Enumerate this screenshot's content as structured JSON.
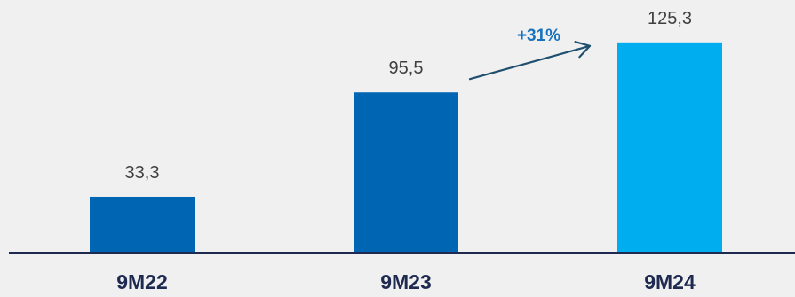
{
  "chart_data": {
    "type": "bar",
    "categories": [
      "9M22",
      "9M23",
      "9M24"
    ],
    "values": [
      33.3,
      95.5,
      125.3
    ],
    "value_labels": [
      "33,3",
      "95,5",
      "125,3"
    ],
    "colors": [
      "#0066b3",
      "#0066b3",
      "#00aeef"
    ],
    "axis_color": "#1e2a4f",
    "annotation": {
      "text": "+31%",
      "from_category": "9M23",
      "to_category": "9M24",
      "color": "#1a72bd",
      "arrow_color": "#1f4f6f"
    },
    "title": "",
    "xlabel": "",
    "ylabel": "",
    "ylim": [
      0,
      140
    ],
    "grid": false,
    "legend": "none"
  }
}
